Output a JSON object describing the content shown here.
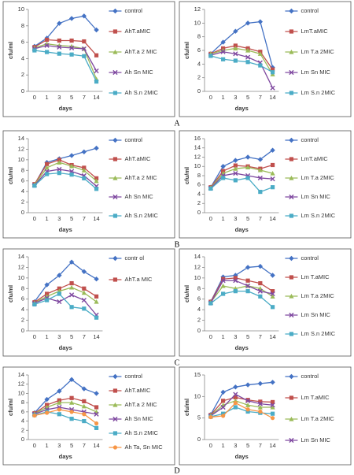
{
  "panel_labels": [
    "A",
    "B",
    "C",
    "D"
  ],
  "chart_data": [
    {
      "type": "line",
      "xlabel": "days",
      "ylabel": "cfu/ml",
      "categories": [
        "0",
        "1",
        "3",
        "5",
        "7",
        "14"
      ],
      "ylim": [
        0,
        10
      ],
      "yticks": [
        0,
        2,
        4,
        6,
        8,
        10
      ],
      "series": [
        {
          "name": "control",
          "color": "#4472c4",
          "marker": "diamond",
          "values": [
            5.5,
            6.5,
            8.3,
            8.9,
            9.2,
            7.5
          ]
        },
        {
          "name": "AhT.aMIC",
          "color": "#c0504d",
          "marker": "square",
          "values": [
            5.4,
            6.3,
            6.2,
            6.2,
            6.1,
            4.4
          ]
        },
        {
          "name": "AhT.a 2 MIC",
          "color": "#9bbb59",
          "marker": "triangle",
          "values": [
            5.3,
            5.8,
            5.6,
            5.5,
            5.2,
            1.5
          ]
        },
        {
          "name": "Ah Sn MIC",
          "color": "#7f49a0",
          "marker": "x",
          "values": [
            5.2,
            5.6,
            5.4,
            5.3,
            5.2,
            2.5
          ]
        },
        {
          "name": "Ah S.n  2MIC",
          "color": "#4bacc6",
          "marker": "square",
          "values": [
            5.0,
            4.8,
            4.6,
            4.5,
            4.3,
            1.2
          ]
        }
      ]
    },
    {
      "type": "line",
      "xlabel": "days",
      "ylabel": "cfu/ml",
      "categories": [
        "0",
        "1",
        "3",
        "5",
        "7",
        "14"
      ],
      "ylim": [
        0,
        12
      ],
      "yticks": [
        0,
        2,
        4,
        6,
        8,
        10,
        12
      ],
      "series": [
        {
          "name": "control",
          "color": "#4472c4",
          "marker": "diamond",
          "values": [
            5.5,
            7.2,
            8.8,
            10,
            10.2,
            3.5
          ]
        },
        {
          "name": "LmT.aMIC",
          "color": "#c0504d",
          "marker": "square",
          "values": [
            5.5,
            6.3,
            6.7,
            6.3,
            5.8,
            3.2
          ]
        },
        {
          "name": "Lm T.a 2MIC",
          "color": "#9bbb59",
          "marker": "triangle",
          "values": [
            5.5,
            6.0,
            6.3,
            6.0,
            5.5,
            2.5
          ]
        },
        {
          "name": "Lm Sn MIC",
          "color": "#7f49a0",
          "marker": "x",
          "values": [
            5.3,
            5.8,
            5.5,
            5.0,
            4.2,
            0.5
          ]
        },
        {
          "name": "Lm S.n 2MIC",
          "color": "#4bacc6",
          "marker": "square",
          "values": [
            5.2,
            4.7,
            4.5,
            4.3,
            3.8,
            2.8
          ]
        }
      ]
    },
    {
      "type": "line",
      "xlabel": "days",
      "ylabel": "cfu/ml",
      "categories": [
        "0",
        "1",
        "3",
        "5",
        "7",
        "14"
      ],
      "ylim": [
        0,
        14
      ],
      "yticks": [
        0,
        2,
        4,
        6,
        8,
        10,
        12,
        14
      ],
      "series": [
        {
          "name": "control",
          "color": "#4472c4",
          "marker": "diamond",
          "values": [
            5.3,
            9.5,
            10.2,
            10.8,
            11.5,
            12.2
          ]
        },
        {
          "name": "AhT.aMIC",
          "color": "#c0504d",
          "marker": "square",
          "values": [
            5.4,
            9.2,
            10,
            9,
            8.5,
            6.5
          ]
        },
        {
          "name": "AhT.a 2 MIC",
          "color": "#9bbb59",
          "marker": "triangle",
          "values": [
            5.3,
            8.5,
            9.5,
            8.8,
            8,
            6
          ]
        },
        {
          "name": "Ah Sn MIC",
          "color": "#7f49a0",
          "marker": "x",
          "values": [
            5.2,
            7.8,
            8.2,
            7.8,
            7,
            5
          ]
        },
        {
          "name": "Ah S.n  2MIC",
          "color": "#4bacc6",
          "marker": "square",
          "values": [
            5.1,
            7.3,
            7.5,
            7.2,
            6.5,
            4.5
          ]
        }
      ]
    },
    {
      "type": "line",
      "xlabel": "days",
      "ylabel": "cfu/ml",
      "categories": [
        "0",
        "1",
        "3",
        "5",
        "7",
        "14"
      ],
      "ylim": [
        0,
        16
      ],
      "yticks": [
        0,
        2,
        4,
        6,
        8,
        10,
        12,
        14,
        16
      ],
      "series": [
        {
          "name": "control",
          "color": "#4472c4",
          "marker": "diamond",
          "values": [
            5.5,
            10,
            11.3,
            12,
            11.5,
            13.5
          ]
        },
        {
          "name": "LmT.aMIC",
          "color": "#c0504d",
          "marker": "square",
          "values": [
            5.5,
            9,
            10.2,
            10,
            9.5,
            10.3
          ]
        },
        {
          "name": "Lm T.a 2MIC",
          "color": "#9bbb59",
          "marker": "triangle",
          "values": [
            5.4,
            8.5,
            9.5,
            9.8,
            9.2,
            8.5
          ]
        },
        {
          "name": "Lm Sn MIC",
          "color": "#7f49a0",
          "marker": "x",
          "values": [
            5.3,
            8,
            8.5,
            8,
            7.5,
            7.3
          ]
        },
        {
          "name": "Lm S.n 2MIC",
          "color": "#4bacc6",
          "marker": "square",
          "values": [
            5.2,
            7.5,
            7,
            7.5,
            4.5,
            5.5
          ]
        }
      ]
    },
    {
      "type": "line",
      "xlabel": "days",
      "ylabel": "cfu/ml",
      "categories": [
        "0",
        "1",
        "3",
        "5",
        "7",
        "14"
      ],
      "ylim": [
        0,
        14
      ],
      "yticks": [
        0,
        2,
        4,
        6,
        8,
        10,
        12,
        14
      ],
      "series": [
        {
          "name": "contr ol",
          "color": "#4472c4",
          "marker": "diamond",
          "values": [
            5.5,
            8.7,
            10.5,
            13,
            11.2,
            9.8
          ]
        },
        {
          "name": "AhT.a MIC",
          "color": "#c0504d",
          "marker": "square",
          "values": [
            5.4,
            7.0,
            8.0,
            9.0,
            8.0,
            6.5
          ]
        },
        {
          "color": "#9bbb59",
          "marker": "triangle",
          "values": [
            5.3,
            6.5,
            7.5,
            8.2,
            7.2,
            5.5
          ]
        },
        {
          "color": "#7f49a0",
          "marker": "x",
          "values": [
            5.2,
            6.2,
            5.5,
            6.8,
            5.8,
            3.0
          ]
        },
        {
          "color": "#4bacc6",
          "marker": "square",
          "values": [
            5.0,
            5.8,
            7,
            4.5,
            4.2,
            2.5
          ]
        }
      ]
    },
    {
      "type": "line",
      "xlabel": "days",
      "ylabel": "cfu/ml",
      "categories": [
        "0",
        "1",
        "3",
        "5",
        "7",
        "14"
      ],
      "ylim": [
        0,
        14
      ],
      "yticks": [
        0,
        2,
        4,
        6,
        8,
        10,
        12,
        14
      ],
      "series": [
        {
          "name": "control",
          "color": "#4472c4",
          "marker": "diamond",
          "values": [
            5.5,
            10.2,
            10.5,
            12,
            12.2,
            10.5
          ]
        },
        {
          "name": "Lm T.aMIC",
          "color": "#c0504d",
          "marker": "square",
          "values": [
            5.5,
            9.8,
            10,
            9.5,
            9,
            7.5
          ]
        },
        {
          "name": "Lm T.a 2MIC",
          "color": "#9bbb59",
          "marker": "triangle",
          "values": [
            5.4,
            8.5,
            8,
            8.5,
            8,
            6.5
          ]
        },
        {
          "name": "Lm Sn MIC",
          "color": "#7f49a0",
          "marker": "x",
          "values": [
            5.3,
            9.5,
            9.5,
            8.5,
            7.5,
            7
          ]
        },
        {
          "name": "Lm S.n 2MIC",
          "color": "#4bacc6",
          "marker": "square",
          "values": [
            5.2,
            7,
            7.5,
            7.5,
            6.5,
            4.5
          ]
        }
      ]
    },
    {
      "type": "line",
      "xlabel": "days",
      "ylabel": "cfu/ml",
      "categories": [
        "0",
        "1",
        "3",
        "5",
        "7",
        "14"
      ],
      "ylim": [
        0,
        14
      ],
      "yticks": [
        0,
        2,
        4,
        6,
        8,
        10,
        12,
        14
      ],
      "series": [
        {
          "name": "control",
          "color": "#4472c4",
          "marker": "diamond",
          "values": [
            5.8,
            8.7,
            10.5,
            13,
            11,
            10
          ]
        },
        {
          "name": "AhT.aMIC",
          "color": "#c0504d",
          "marker": "square",
          "values": [
            5.7,
            7.5,
            8.5,
            9,
            8.3,
            7
          ]
        },
        {
          "name": "AhT.a 2 MIC",
          "color": "#9bbb59",
          "marker": "triangle",
          "values": [
            5.6,
            7,
            8,
            8,
            7.2,
            6
          ]
        },
        {
          "name": "Ah Sn MIC",
          "color": "#7f49a0",
          "marker": "x",
          "values": [
            5.5,
            6.5,
            7,
            6.5,
            6,
            5.5
          ]
        },
        {
          "name": "Ah S.n  2MIC",
          "color": "#4bacc6",
          "marker": "square",
          "values": [
            5.3,
            6,
            5.5,
            4.5,
            4,
            2.5
          ]
        },
        {
          "name": "Ah Ta, Sn MIC",
          "color": "#f79646",
          "marker": "circle",
          "values": [
            5.2,
            5.8,
            6.5,
            6,
            5.5,
            3.5
          ]
        }
      ]
    },
    {
      "type": "line",
      "xlabel": "days",
      "ylabel": "cfu/ml",
      "categories": [
        "0",
        "1",
        "3",
        "5",
        "7",
        "14"
      ],
      "ylim": [
        0,
        15
      ],
      "yticks": [
        0,
        5,
        10,
        15
      ],
      "series": [
        {
          "name": "control",
          "color": "#4472c4",
          "marker": "diamond",
          "values": [
            5.8,
            11,
            12.2,
            12.7,
            13,
            13.3
          ]
        },
        {
          "name": "Lm T.aMIC",
          "color": "#c0504d",
          "marker": "square",
          "values": [
            5.7,
            9,
            9.8,
            9.2,
            8.8,
            8.7
          ]
        },
        {
          "name": "Lm T.a 2MIC",
          "color": "#9bbb59",
          "marker": "triangle",
          "values": [
            5.6,
            8,
            9,
            8,
            7.5,
            7.5
          ]
        },
        {
          "name": "Lm Sn MIC",
          "color": "#7f49a0",
          "marker": "x",
          "values": [
            5.5,
            7.5,
            10.5,
            9,
            8.3,
            8
          ]
        },
        {
          "color": "#4bacc6",
          "marker": "square",
          "values": [
            5.3,
            6,
            7.5,
            6.5,
            6.2,
            6
          ]
        },
        {
          "color": "#f79646",
          "marker": "circle",
          "values": [
            5.2,
            5.5,
            8.5,
            7,
            6.5,
            5
          ]
        }
      ]
    }
  ]
}
